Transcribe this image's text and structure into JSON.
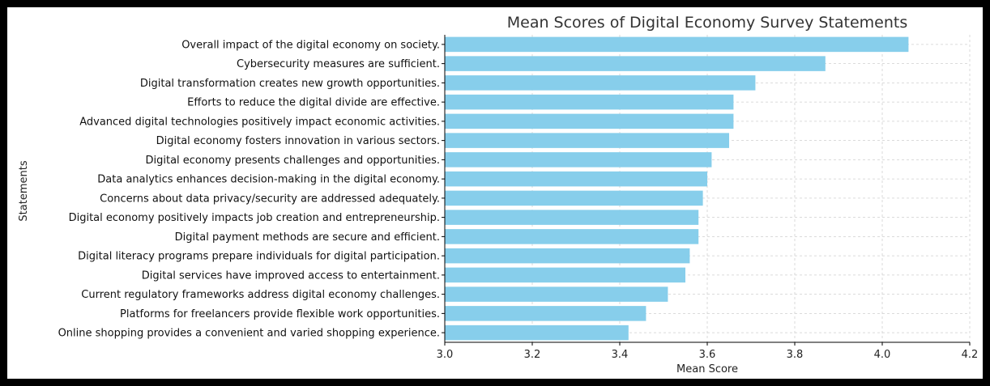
{
  "chart_data": {
    "type": "bar",
    "orientation": "horizontal",
    "title": "Mean Scores of Digital Economy Survey Statements",
    "xlabel": "Mean Score",
    "ylabel": "Statements",
    "xlim": [
      3.0,
      4.2
    ],
    "xticks": [
      "3.0",
      "3.2",
      "3.4",
      "3.6",
      "3.8",
      "4.0",
      "4.2"
    ],
    "grid": true,
    "bar_color": "#87ceeb",
    "categories": [
      "Overall impact of the digital economy on society.",
      "Cybersecurity measures are sufficient.",
      "Digital transformation creates new growth opportunities.",
      "Efforts to reduce the digital divide are effective.",
      "Advanced digital technologies positively impact economic activities.",
      "Digital economy fosters innovation in various sectors.",
      "Digital economy presents challenges and opportunities.",
      "Data analytics enhances decision-making in the digital economy.",
      "Concerns about data privacy/security are addressed adequately.",
      "Digital economy positively impacts job creation and entrepreneurship.",
      "Digital payment methods are secure and efficient.",
      "Digital literacy programs prepare individuals for digital participation.",
      "Digital services have improved access to entertainment.",
      "Current regulatory frameworks address digital economy challenges.",
      "Platforms for freelancers provide flexible work opportunities.",
      "Online shopping provides a convenient and varied shopping experience."
    ],
    "values": [
      4.06,
      3.87,
      3.71,
      3.66,
      3.66,
      3.65,
      3.61,
      3.6,
      3.59,
      3.58,
      3.58,
      3.56,
      3.55,
      3.51,
      3.46,
      3.42
    ]
  }
}
